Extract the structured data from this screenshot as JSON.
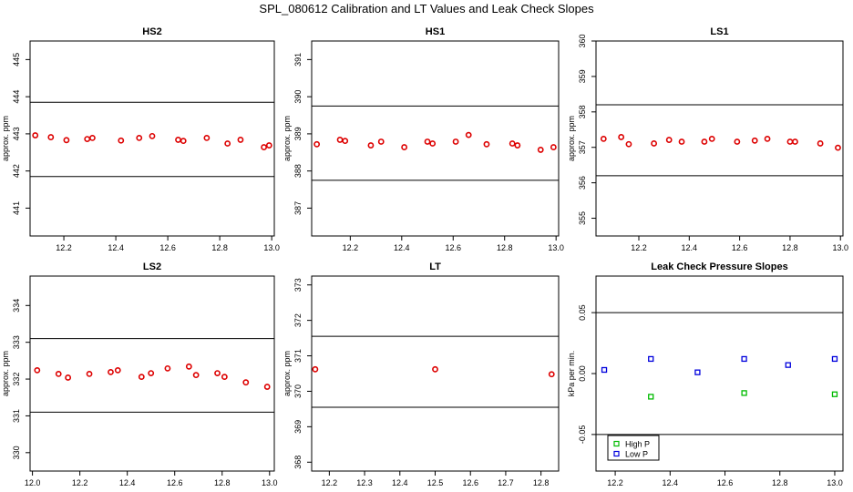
{
  "title": "SPL_080612  Calibration and LT Values and Leak Check Slopes",
  "chart_data": [
    {
      "type": "scatter",
      "title": "HS2",
      "ylabel": "approx. ppm",
      "xlim": [
        12.07,
        13.01
      ],
      "ylim": [
        440.25,
        445.5
      ],
      "xticks": [
        12.2,
        12.4,
        12.6,
        12.8,
        13.0
      ],
      "xtick_labels": [
        "12.2",
        "12.4",
        "12.6",
        "12.8",
        "13.0"
      ],
      "yticks": [
        441,
        442,
        443,
        444,
        445
      ],
      "ytick_labels": [
        "441",
        "442",
        "443",
        "444",
        "445"
      ],
      "hlines": [
        443.85,
        441.85
      ],
      "series": [
        {
          "color": "#dd0000",
          "x": [
            12.09,
            12.15,
            12.21,
            12.29,
            12.31,
            12.42,
            12.49,
            12.54,
            12.64,
            12.66,
            12.75,
            12.83,
            12.88,
            12.97,
            12.99
          ],
          "y": [
            442.96,
            442.91,
            442.83,
            442.86,
            442.89,
            442.82,
            442.89,
            442.94,
            442.84,
            442.81,
            442.89,
            442.74,
            442.84,
            442.64,
            442.69
          ]
        }
      ]
    },
    {
      "type": "scatter",
      "title": "HS1",
      "ylabel": "approx. ppm",
      "xlim": [
        12.05,
        13.01
      ],
      "ylim": [
        386.25,
        391.5
      ],
      "xticks": [
        12.2,
        12.4,
        12.6,
        12.8,
        13.0
      ],
      "xtick_labels": [
        "12.2",
        "12.4",
        "12.6",
        "12.8",
        "13.0"
      ],
      "yticks": [
        387,
        388,
        389,
        390,
        391
      ],
      "ytick_labels": [
        "387",
        "388",
        "389",
        "390",
        "391"
      ],
      "hlines": [
        389.75,
        387.75
      ],
      "series": [
        {
          "color": "#dd0000",
          "x": [
            12.07,
            12.16,
            12.18,
            12.28,
            12.32,
            12.41,
            12.5,
            12.52,
            12.61,
            12.66,
            12.73,
            12.83,
            12.85,
            12.94,
            12.99
          ],
          "y": [
            388.72,
            388.84,
            388.81,
            388.69,
            388.79,
            388.64,
            388.79,
            388.74,
            388.79,
            388.97,
            388.72,
            388.74,
            388.69,
            388.57,
            388.64
          ]
        }
      ]
    },
    {
      "type": "scatter",
      "title": "LS1",
      "ylabel": "approx. ppm",
      "xlim": [
        12.03,
        13.01
      ],
      "ylim": [
        354.5,
        360
      ],
      "xticks": [
        12.2,
        12.4,
        12.6,
        12.8,
        13.0
      ],
      "xtick_labels": [
        "12.2",
        "12.4",
        "12.6",
        "12.8",
        "13.0"
      ],
      "yticks": [
        355,
        356,
        357,
        358,
        359,
        360
      ],
      "ytick_labels": [
        "355",
        "356",
        "357",
        "358",
        "359",
        "360"
      ],
      "hlines": [
        358.2,
        356.2
      ],
      "series": [
        {
          "color": "#dd0000",
          "x": [
            12.06,
            12.13,
            12.16,
            12.26,
            12.32,
            12.37,
            12.46,
            12.49,
            12.59,
            12.66,
            12.71,
            12.8,
            12.82,
            12.92,
            12.99
          ],
          "y": [
            357.24,
            357.29,
            357.09,
            357.11,
            357.21,
            357.16,
            357.16,
            357.24,
            357.16,
            357.19,
            357.24,
            357.16,
            357.16,
            357.11,
            356.99
          ]
        }
      ]
    },
    {
      "type": "scatter",
      "title": "LS2",
      "ylabel": "approx. ppm",
      "xlim": [
        11.99,
        13.02
      ],
      "ylim": [
        329.5,
        334.8
      ],
      "xticks": [
        12.0,
        12.2,
        12.4,
        12.6,
        12.8,
        13.0
      ],
      "xtick_labels": [
        "12.0",
        "12.2",
        "12.4",
        "12.6",
        "12.8",
        "13.0"
      ],
      "yticks": [
        330,
        331,
        332,
        333,
        334
      ],
      "ytick_labels": [
        "330",
        "331",
        "332",
        "333",
        "334"
      ],
      "hlines": [
        333.1,
        331.1
      ],
      "series": [
        {
          "color": "#dd0000",
          "x": [
            12.02,
            12.11,
            12.15,
            12.24,
            12.33,
            12.36,
            12.46,
            12.5,
            12.57,
            12.66,
            12.69,
            12.78,
            12.81,
            12.9,
            12.99
          ],
          "y": [
            332.24,
            332.14,
            332.04,
            332.14,
            332.19,
            332.24,
            332.06,
            332.16,
            332.29,
            332.34,
            332.11,
            332.16,
            332.06,
            331.91,
            331.79
          ]
        }
      ]
    },
    {
      "type": "scatter",
      "title": "LT",
      "ylabel": "approx. ppm",
      "xlim": [
        12.15,
        12.85
      ],
      "ylim": [
        367.75,
        373.25
      ],
      "xticks": [
        12.2,
        12.3,
        12.4,
        12.5,
        12.6,
        12.7,
        12.8
      ],
      "xtick_labels": [
        "12.2",
        "12.3",
        "12.4",
        "12.5",
        "12.6",
        "12.7",
        "12.8"
      ],
      "yticks": [
        368,
        369,
        370,
        371,
        372,
        373
      ],
      "ytick_labels": [
        "368",
        "369",
        "370",
        "371",
        "372",
        "373"
      ],
      "hlines": [
        371.55,
        369.55
      ],
      "series": [
        {
          "color": "#dd0000",
          "x": [
            12.16,
            12.5,
            12.83
          ],
          "y": [
            370.62,
            370.62,
            370.48
          ]
        }
      ]
    },
    {
      "type": "scatter",
      "title": "Leak Check Pressure Slopes",
      "ylabel": "kPa per min.",
      "xlim": [
        12.13,
        13.03
      ],
      "ylim": [
        -0.08,
        0.08
      ],
      "xticks": [
        12.2,
        12.4,
        12.6,
        12.8,
        13.0
      ],
      "xtick_labels": [
        "12.2",
        "12.4",
        "12.6",
        "12.8",
        "13.0"
      ],
      "yticks": [
        -0.05,
        0.0,
        0.05
      ],
      "ytick_labels": [
        "-0.05",
        "0.00",
        "0.05"
      ],
      "hlines": [
        0.05,
        -0.05
      ],
      "legend": "bottom-left",
      "series": [
        {
          "name": "High P",
          "color": "#00bb00",
          "x": [
            12.33,
            12.67,
            13.0
          ],
          "y": [
            -0.019,
            -0.016,
            -0.017
          ]
        },
        {
          "name": "Low P",
          "color": "#0000dd",
          "x": [
            12.16,
            12.33,
            12.5,
            12.67,
            12.83,
            13.0
          ],
          "y": [
            0.003,
            0.012,
            0.001,
            0.012,
            0.007,
            0.012
          ]
        }
      ]
    }
  ]
}
